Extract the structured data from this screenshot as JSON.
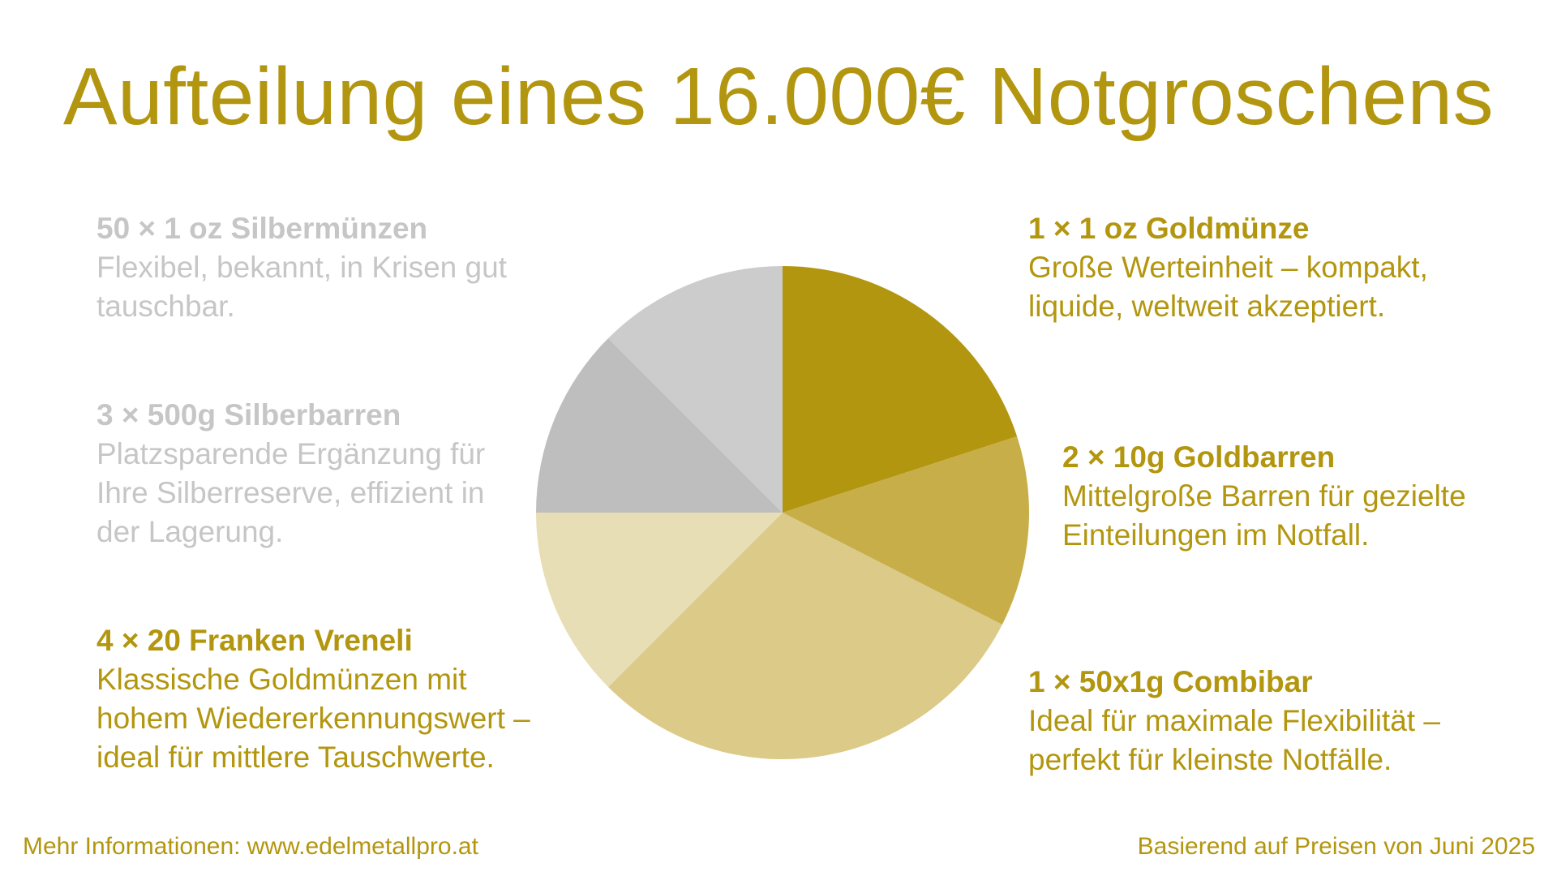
{
  "title": "Aufteilung eines 16.000€ Notgroschens",
  "chart_data": {
    "type": "pie",
    "title": "Aufteilung eines 16.000€ Notgroschens",
    "categories": [
      "1 × 1 oz Goldmünze",
      "2 × 10g Goldbarren",
      "1 × 50x1g Combibar",
      "4 × 20 Franken Vreneli",
      "3 × 500g Silberbarren",
      "50 × 1 oz Silbermünzen"
    ],
    "values": [
      20,
      12.5,
      30,
      12.5,
      12.5,
      12.5
    ],
    "colors": [
      "#b3960f",
      "#c8ae48",
      "#dbca88",
      "#e8deb5",
      "#bebebe",
      "#cccccc"
    ]
  },
  "items": {
    "silver_coins": {
      "head": "50 × 1 oz Silbermünzen",
      "lines": [
        "Flexibel, bekannt, in Krisen gut",
        "tauschbar."
      ]
    },
    "silver_bars": {
      "head": "3 × 500g Silberbarren",
      "lines": [
        "Platzsparende Ergänzung für",
        "Ihre Silberreserve, effizient in",
        "der Lagerung."
      ]
    },
    "vreneli": {
      "head": "4 × 20 Franken Vreneli",
      "lines": [
        "Klassische Goldmünzen mit",
        "hohem Wiedererkennungswert –",
        "ideal für mittlere Tauschwerte."
      ]
    },
    "gold_coin": {
      "head": "1 × 1 oz Goldmünze",
      "lines": [
        "Große Werteinheit – kompakt,",
        "liquide, weltweit akzeptiert."
      ]
    },
    "gold_bars": {
      "head": "2 × 10g Goldbarren",
      "lines": [
        "Mittelgroße Barren für gezielte",
        "Einteilungen im Notfall."
      ]
    },
    "combibar": {
      "head": "1 × 50x1g Combibar",
      "lines": [
        "Ideal für maximale Flexibilität –",
        "perfekt für kleinste Notfälle."
      ]
    }
  },
  "footer": {
    "left": "Mehr Informationen: www.edelmetallpro.at",
    "right": "Basierend auf Preisen von Juni 2025"
  }
}
